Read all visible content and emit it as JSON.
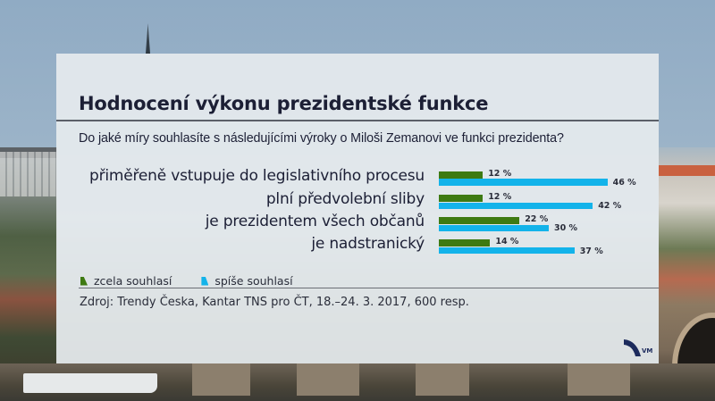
{
  "chart_data": {
    "type": "bar",
    "orientation": "horizontal",
    "title": "Hodnocení výkonu prezidentské funkce",
    "subtitle": "Do jaké míry souhlasíte s následujícími výroky o Miloši Zemanovi ve funkci prezidenta?",
    "categories": [
      "přiměřeně vstupuje do legislativního procesu",
      "plní předvolební sliby",
      "je prezidentem všech občanů",
      "je nadstranický"
    ],
    "series": [
      {
        "name": "zcela souhlasí",
        "color": "#3e7a12",
        "values": [
          12,
          12,
          22,
          14
        ]
      },
      {
        "name": "spíše souhlasí",
        "color": "#13b3ea",
        "values": [
          46,
          42,
          30,
          37
        ]
      }
    ],
    "value_labels": [
      {
        "green": "12 %",
        "blue": "46 %"
      },
      {
        "green": "12 %",
        "blue": "42 %"
      },
      {
        "green": "22 %",
        "blue": "30 %"
      },
      {
        "green": "14 %",
        "blue": "37 %"
      }
    ],
    "unit": "%",
    "xlabel": "",
    "ylabel": "",
    "grid": false,
    "legend_position": "bottom-left",
    "source": "Zdroj: Trendy Česka, Kantar TNS pro ČT, 18.–24. 3. 2017, 600 resp."
  },
  "panel": {
    "title": "Hodnocení výkonu prezidentské funkce",
    "subtitle": "Do jaké míry souhlasíte s následujícími výroky o Miloši Zemanovi ve funkci prezidenta?"
  },
  "legend": {
    "items": [
      {
        "label": "zcela souhlasí",
        "color": "#3e7a12"
      },
      {
        "label": "spíše souhlasí",
        "color": "#13b3ea"
      }
    ]
  },
  "footer": {
    "source": "Zdroj: Trendy Česka, Kantar TNS pro ČT, 18.–24. 3. 2017, 600 resp.",
    "logo_text": "VM"
  }
}
